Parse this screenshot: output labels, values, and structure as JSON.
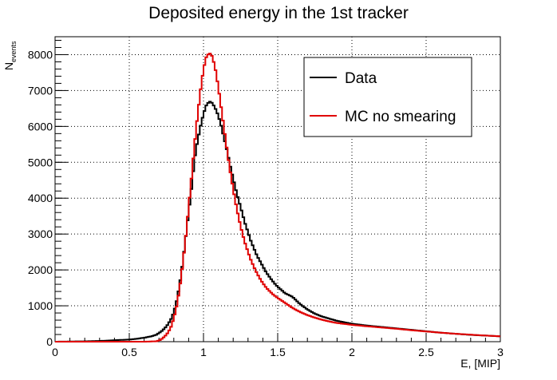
{
  "chart_data": {
    "type": "line",
    "title": "Deposited energy in the 1st tracker",
    "xlabel": "E, [MIP]",
    "ylabel_main": "N",
    "ylabel_sub": "events",
    "xlim": [
      0,
      3
    ],
    "ylim": [
      0,
      8500
    ],
    "x_ticks": [
      0,
      0.5,
      1,
      1.5,
      2,
      2.5,
      3
    ],
    "x_tick_labels": [
      "0",
      "0.5",
      "1",
      "1.5",
      "2",
      "2.5",
      "3"
    ],
    "y_ticks": [
      0,
      1000,
      2000,
      3000,
      4000,
      5000,
      6000,
      7000,
      8000
    ],
    "y_tick_labels": [
      "0",
      "1000",
      "2000",
      "3000",
      "4000",
      "5000",
      "6000",
      "7000",
      "8000"
    ],
    "grid": true,
    "legend_position": "top-right",
    "series": [
      {
        "name": "Data",
        "color": "#000000",
        "x": [
          0.0,
          0.2,
          0.3,
          0.4,
          0.5,
          0.55,
          0.6,
          0.65,
          0.68,
          0.7,
          0.72,
          0.74,
          0.76,
          0.78,
          0.8,
          0.82,
          0.84,
          0.86,
          0.88,
          0.9,
          0.92,
          0.94,
          0.96,
          0.98,
          1.0,
          1.02,
          1.04,
          1.06,
          1.08,
          1.1,
          1.12,
          1.14,
          1.16,
          1.18,
          1.2,
          1.22,
          1.24,
          1.26,
          1.28,
          1.3,
          1.32,
          1.34,
          1.36,
          1.38,
          1.4,
          1.42,
          1.44,
          1.46,
          1.48,
          1.5,
          1.55,
          1.6,
          1.65,
          1.7,
          1.75,
          1.8,
          1.85,
          1.9,
          2.0,
          2.1,
          2.2,
          2.3,
          2.4,
          2.5,
          2.6,
          2.7,
          2.8,
          2.9,
          3.0
        ],
        "y": [
          0,
          10,
          20,
          40,
          60,
          80,
          110,
          150,
          190,
          240,
          300,
          380,
          480,
          620,
          820,
          1150,
          1600,
          2200,
          2900,
          3600,
          4300,
          5100,
          5600,
          6000,
          6350,
          6600,
          6700,
          6650,
          6500,
          6300,
          6000,
          5650,
          5300,
          4900,
          4550,
          4200,
          3900,
          3600,
          3300,
          3050,
          2800,
          2600,
          2400,
          2250,
          2100,
          1950,
          1830,
          1720,
          1620,
          1530,
          1350,
          1250,
          1050,
          900,
          780,
          700,
          640,
          580,
          500,
          450,
          410,
          370,
          330,
          290,
          250,
          220,
          190,
          170,
          150
        ]
      },
      {
        "name": "MC no smearing",
        "color": "#e00000",
        "x": [
          0.0,
          0.6,
          0.68,
          0.7,
          0.72,
          0.74,
          0.76,
          0.78,
          0.8,
          0.82,
          0.84,
          0.86,
          0.88,
          0.9,
          0.92,
          0.94,
          0.96,
          0.98,
          1.0,
          1.02,
          1.04,
          1.06,
          1.08,
          1.1,
          1.12,
          1.14,
          1.16,
          1.18,
          1.2,
          1.22,
          1.24,
          1.26,
          1.28,
          1.3,
          1.32,
          1.34,
          1.36,
          1.38,
          1.4,
          1.42,
          1.44,
          1.46,
          1.48,
          1.5,
          1.55,
          1.6,
          1.65,
          1.7,
          1.75,
          1.8,
          1.85,
          1.9,
          2.0,
          2.1,
          2.2,
          2.3,
          2.4,
          2.5,
          2.6,
          2.7,
          2.8,
          2.9,
          3.0
        ],
        "y": [
          0,
          0,
          10,
          30,
          80,
          150,
          250,
          400,
          650,
          1000,
          1500,
          2150,
          2900,
          3750,
          4600,
          5500,
          6300,
          7000,
          7600,
          7950,
          8050,
          7950,
          7600,
          7100,
          6500,
          5900,
          5300,
          4750,
          4250,
          3800,
          3400,
          3050,
          2750,
          2500,
          2270,
          2080,
          1910,
          1760,
          1630,
          1520,
          1430,
          1350,
          1280,
          1220,
          1080,
          940,
          830,
          740,
          670,
          610,
          560,
          520,
          470,
          430,
          395,
          360,
          320,
          285,
          250,
          220,
          195,
          170,
          150
        ]
      }
    ]
  }
}
